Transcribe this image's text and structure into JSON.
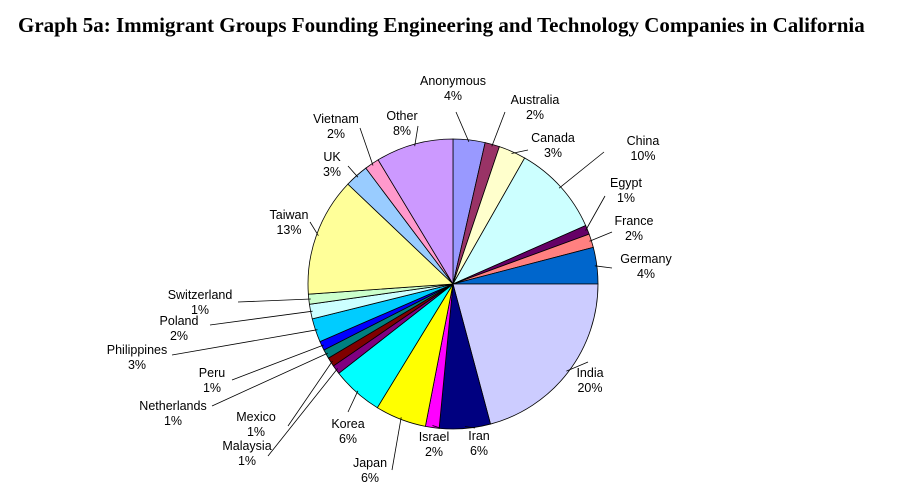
{
  "chart_data": {
    "type": "pie",
    "title": "Graph 5a: Immigrant Groups Founding Engineering and Technology Companies in California",
    "start": "top",
    "direction": "clockwise",
    "slices": [
      {
        "name": "Anonymous",
        "label": "4%",
        "value": 3.5,
        "color": "#9999ff"
      },
      {
        "name": "Australia",
        "label": "2%",
        "value": 1.6,
        "color": "#993366"
      },
      {
        "name": "Canada",
        "label": "3%",
        "value": 3.0,
        "color": "#ffffcc"
      },
      {
        "name": "China",
        "label": "10%",
        "value": 10.0,
        "color": "#ccffff"
      },
      {
        "name": "Egypt",
        "label": "1%",
        "value": 1.0,
        "color": "#660066"
      },
      {
        "name": "France",
        "label": "2%",
        "value": 1.5,
        "color": "#ff8080"
      },
      {
        "name": "Germany",
        "label": "4%",
        "value": 4.0,
        "color": "#0066cc"
      },
      {
        "name": "India",
        "label": "20%",
        "value": 20.5,
        "color": "#ccccff"
      },
      {
        "name": "Iran",
        "label": "6%",
        "value": 5.6,
        "color": "#000080"
      },
      {
        "name": "Israel",
        "label": "2%",
        "value": 1.5,
        "color": "#ff00ff"
      },
      {
        "name": "Japan",
        "label": "6%",
        "value": 5.6,
        "color": "#ffff00"
      },
      {
        "name": "Korea",
        "label": "6%",
        "value": 5.6,
        "color": "#00ffff"
      },
      {
        "name": "Malaysia",
        "label": "1%",
        "value": 1.0,
        "color": "#800080"
      },
      {
        "name": "Mexico",
        "label": "1%",
        "value": 1.0,
        "color": "#800000"
      },
      {
        "name": "Netherlands",
        "label": "1%",
        "value": 1.0,
        "color": "#008080"
      },
      {
        "name": "Peru",
        "label": "1%",
        "value": 1.0,
        "color": "#0000ff"
      },
      {
        "name": "Philippines",
        "label": "3%",
        "value": 2.6,
        "color": "#00ccff"
      },
      {
        "name": "Poland",
        "label": "2%",
        "value": 1.6,
        "color": "#ccffff"
      },
      {
        "name": "Switzerland",
        "label": "1%",
        "value": 1.1,
        "color": "#ccffcc"
      },
      {
        "name": "Taiwan",
        "label": "13%",
        "value": 13.0,
        "color": "#ffff99"
      },
      {
        "name": "UK",
        "label": "3%",
        "value": 2.6,
        "color": "#99ccff"
      },
      {
        "name": "Vietnam",
        "label": "2%",
        "value": 1.6,
        "color": "#ff99cc"
      },
      {
        "name": "Other",
        "label": "8%",
        "value": 8.5,
        "color": "#cc99ff"
      }
    ]
  }
}
